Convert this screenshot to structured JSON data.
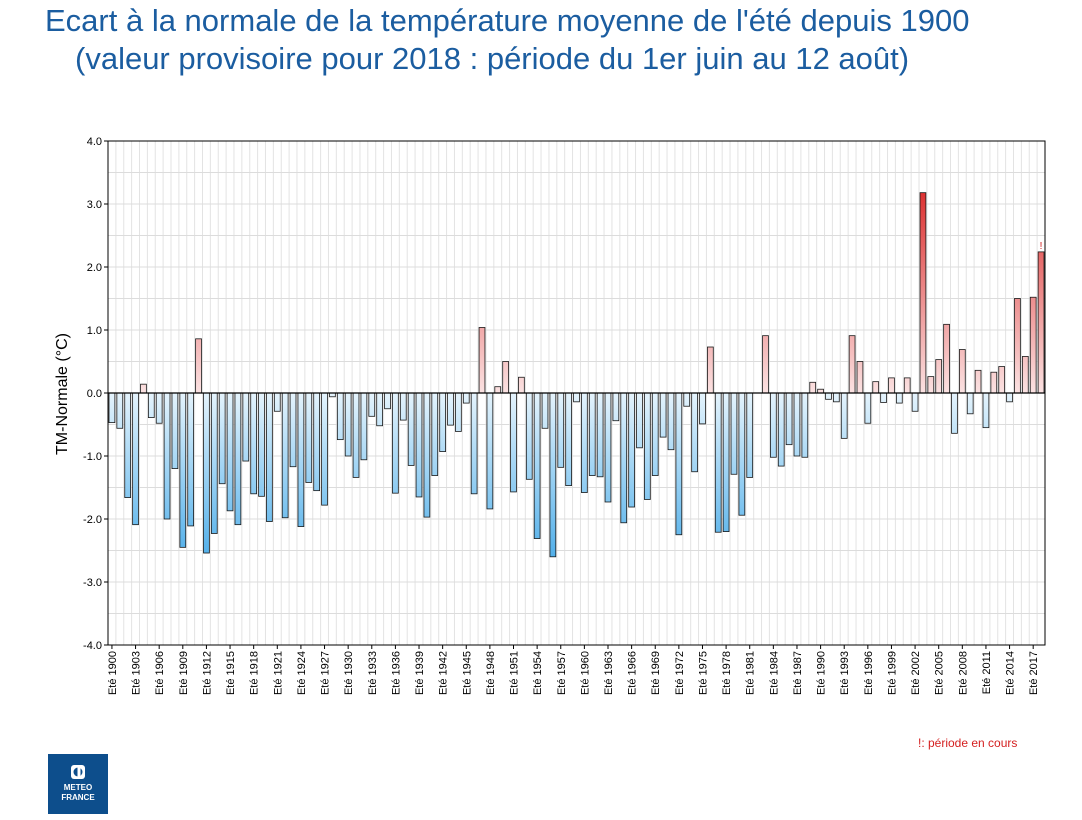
{
  "title": {
    "line1": "Ecart à la normale de la température moyenne de l'été depuis 1900",
    "line2": "(valeur provisoire pour 2018 : période du 1er juin au 12 août)"
  },
  "footnote": "!: période en cours",
  "logo": {
    "line1": "METEO",
    "line2": "FRANCE"
  },
  "colors": {
    "title": "#1b5da0",
    "neg_light": "#e4f3fc",
    "neg_dark": "#4aace9",
    "pos_light": "#fbe3e3",
    "pos_dark": "#dc2f2f",
    "footnote": "#d42020",
    "logo_bg": "#0d4e8c"
  },
  "chart_data": {
    "type": "bar",
    "ylabel": "TM-Normale (°C)",
    "xlabel": "",
    "ylim": [
      -4.0,
      4.0
    ],
    "yticks": [
      "-4.0",
      "-3.0",
      "-2.0",
      "-1.0",
      "0.0",
      "1.0",
      "2.0",
      "3.0",
      "4.0"
    ],
    "category_prefix": "Eté",
    "years": [
      1900,
      1901,
      1902,
      1903,
      1904,
      1905,
      1906,
      1907,
      1908,
      1909,
      1910,
      1911,
      1912,
      1913,
      1914,
      1915,
      1916,
      1917,
      1918,
      1919,
      1920,
      1921,
      1922,
      1923,
      1924,
      1925,
      1926,
      1927,
      1928,
      1929,
      1930,
      1931,
      1932,
      1933,
      1934,
      1935,
      1936,
      1937,
      1938,
      1939,
      1940,
      1941,
      1942,
      1943,
      1944,
      1945,
      1946,
      1947,
      1948,
      1949,
      1950,
      1951,
      1952,
      1953,
      1954,
      1955,
      1956,
      1957,
      1958,
      1959,
      1960,
      1961,
      1962,
      1963,
      1964,
      1965,
      1966,
      1967,
      1968,
      1969,
      1970,
      1971,
      1972,
      1973,
      1974,
      1975,
      1976,
      1977,
      1978,
      1979,
      1980,
      1981,
      1982,
      1983,
      1984,
      1985,
      1986,
      1987,
      1988,
      1989,
      1990,
      1991,
      1992,
      1993,
      1994,
      1995,
      1996,
      1997,
      1998,
      1999,
      2000,
      2001,
      2002,
      2003,
      2004,
      2005,
      2006,
      2007,
      2008,
      2009,
      2010,
      2011,
      2012,
      2013,
      2014,
      2015,
      2016,
      2017,
      2018
    ],
    "values": [
      -0.47,
      -0.56,
      -1.66,
      -2.09,
      0.14,
      -0.39,
      -0.48,
      -2.0,
      -1.2,
      -2.45,
      -2.11,
      0.86,
      -2.54,
      -2.23,
      -1.44,
      -1.87,
      -2.09,
      -1.08,
      -1.6,
      -1.64,
      -2.04,
      -0.29,
      -1.98,
      -1.17,
      -2.12,
      -1.42,
      -1.55,
      -1.78,
      -0.06,
      -0.74,
      -1.0,
      -1.34,
      -1.06,
      -0.37,
      -0.52,
      -0.25,
      -1.59,
      -0.43,
      -1.15,
      -1.65,
      -1.97,
      -1.31,
      -0.93,
      -0.51,
      -0.61,
      -0.16,
      -1.6,
      1.04,
      -1.84,
      0.1,
      0.5,
      -1.57,
      0.25,
      -1.37,
      -2.31,
      -0.56,
      -2.6,
      -1.18,
      -1.47,
      -0.14,
      -1.58,
      -1.31,
      -1.33,
      -1.73,
      -0.44,
      -2.06,
      -1.81,
      -0.87,
      -1.69,
      -1.31,
      -0.7,
      -0.9,
      -2.25,
      -0.21,
      -1.25,
      -0.49,
      0.73,
      -2.21,
      -2.2,
      -1.29,
      -1.94,
      -1.34,
      0.0,
      0.91,
      -1.02,
      -1.16,
      -0.82,
      -1.0,
      -1.02,
      0.17,
      0.06,
      -0.1,
      -0.14,
      -0.72,
      0.91,
      0.5,
      -0.48,
      0.18,
      -0.15,
      0.24,
      -0.16,
      0.24,
      -0.29,
      3.18,
      0.26,
      0.53,
      1.09,
      -0.64,
      0.69,
      -0.33,
      0.36,
      -0.55,
      0.33,
      0.42,
      -0.14,
      1.5,
      0.58,
      1.52,
      2.24
    ],
    "provisional_mark": "!",
    "provisional_year": 2018,
    "grid": true,
    "legend": "none"
  }
}
